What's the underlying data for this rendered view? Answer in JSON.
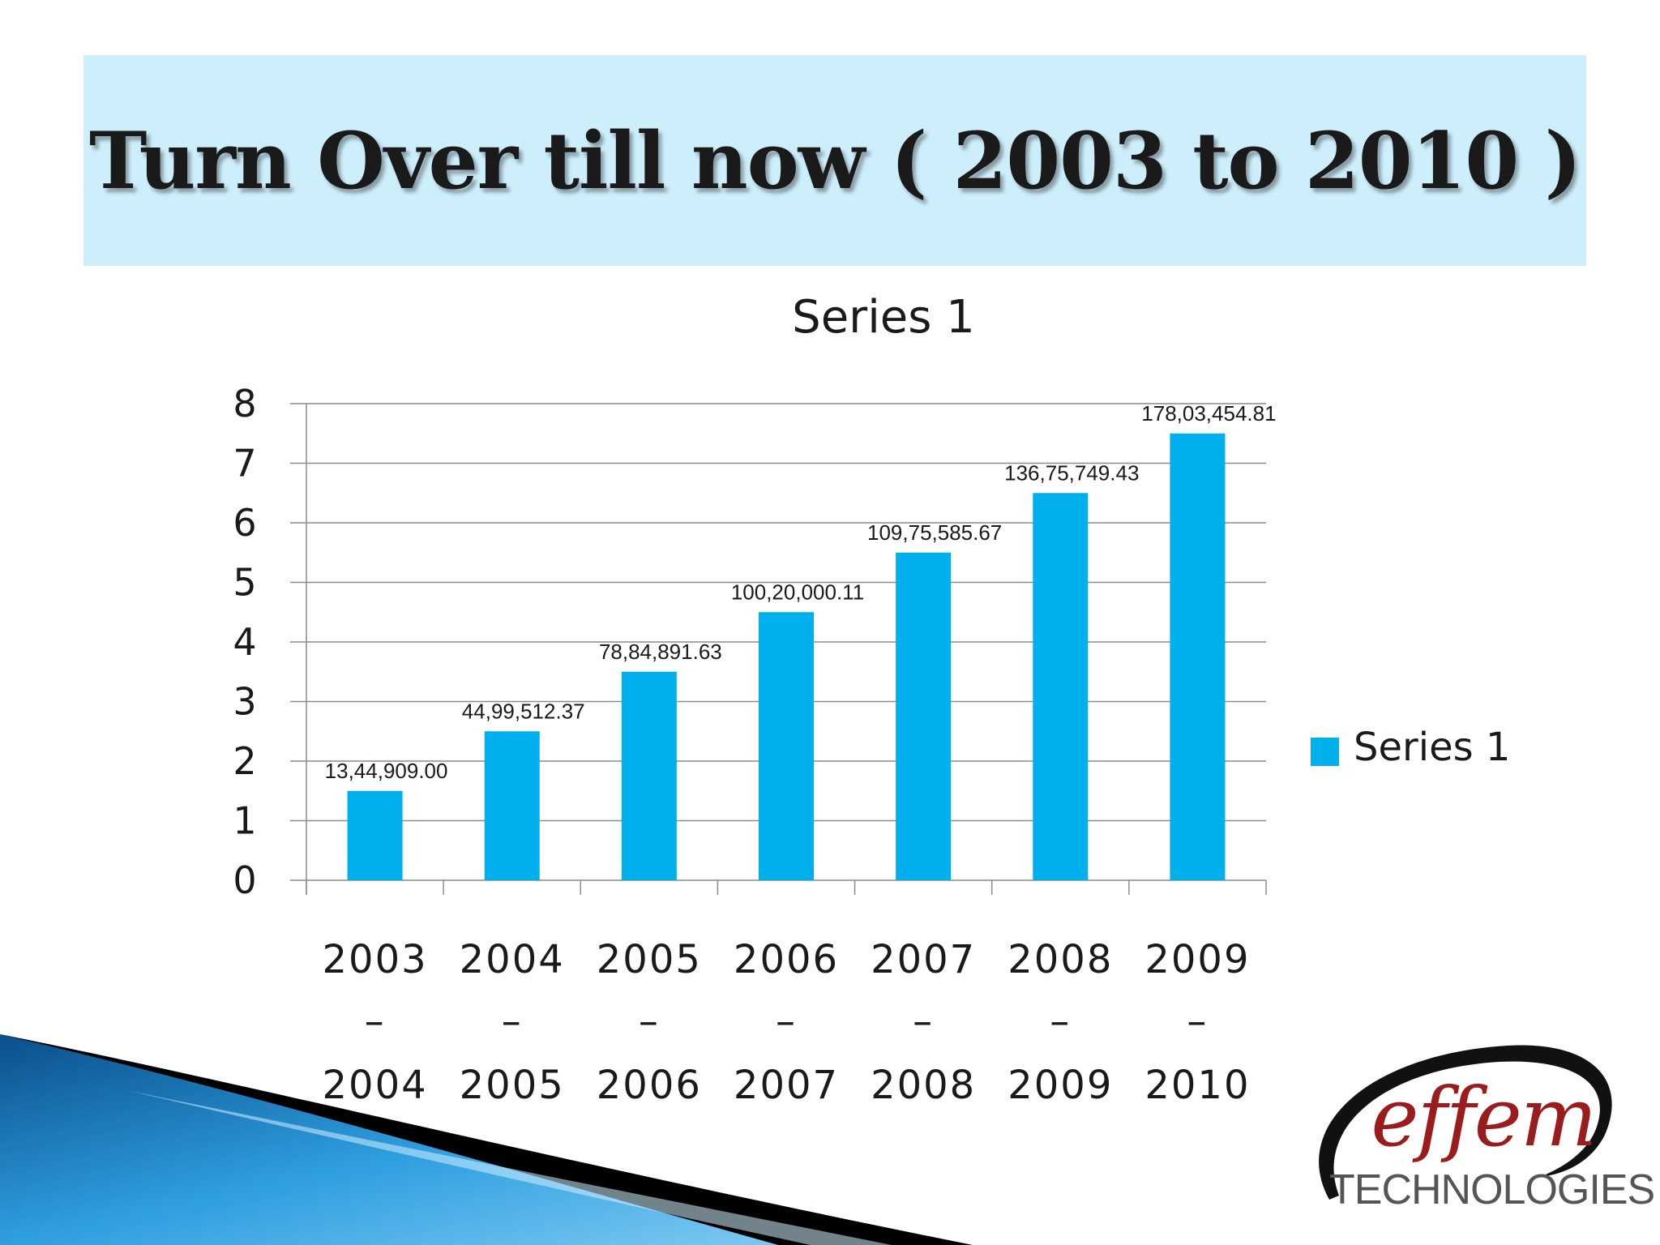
{
  "slide": {
    "title": "Turn Over till now ( 2003 to 2010 )"
  },
  "colors": {
    "bar": "#00b0ec",
    "banner": "#cdeefb",
    "grid": "#8c8c8c"
  },
  "chart_data": {
    "type": "bar",
    "title": "Series 1",
    "categories": [
      [
        "2003",
        "–",
        "2004"
      ],
      [
        "2004",
        "–",
        "2005"
      ],
      [
        "2005",
        "–",
        "2006"
      ],
      [
        "2006",
        "–",
        "2007"
      ],
      [
        "2007",
        "–",
        "2008"
      ],
      [
        "2008",
        "–",
        "2009"
      ],
      [
        "2009",
        "–",
        "2010"
      ]
    ],
    "series": [
      {
        "name": "Series 1",
        "values": [
          1.5,
          2.5,
          3.5,
          4.5,
          5.5,
          6.5,
          7.5
        ],
        "data_labels": [
          "13,44,909.00",
          "44,99,512.37",
          "78,84,891.63",
          "100,20,000.11",
          "109,75,585.67",
          "136,75,749.43",
          "178,03,454.81"
        ]
      }
    ],
    "ylim": [
      0,
      8
    ],
    "yticks": [
      0,
      1,
      2,
      3,
      4,
      5,
      6,
      7,
      8
    ],
    "grid": true,
    "legend": "right",
    "xlabel": "",
    "ylabel": ""
  },
  "logo": {
    "word": "effem",
    "sub": "TECHNOLOGIES"
  }
}
